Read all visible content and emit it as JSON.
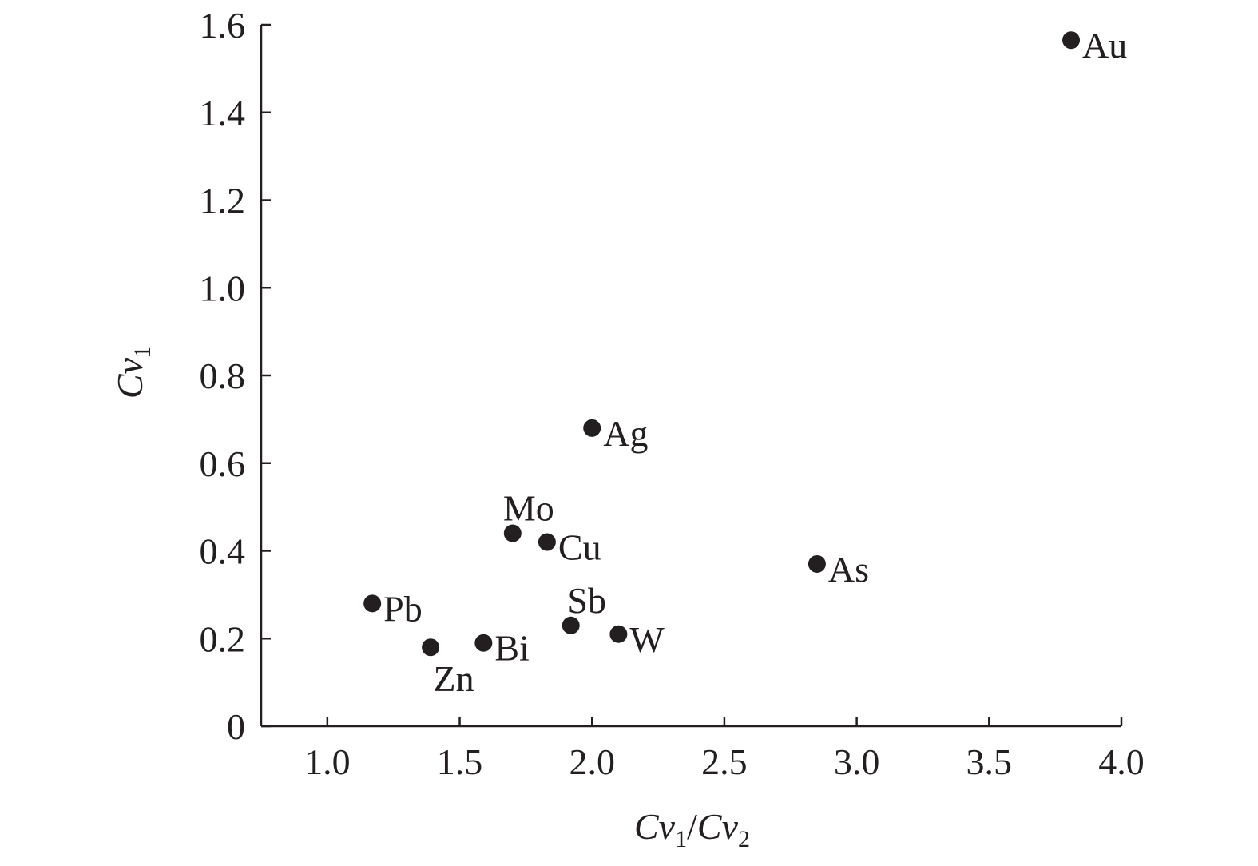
{
  "chart_data": {
    "type": "scatter",
    "title": "",
    "xlabel": {
      "parts": [
        {
          "text": "Cv",
          "style": "italic"
        },
        {
          "text": "1",
          "style": "sub"
        },
        {
          "text": "/",
          "style": "normal"
        },
        {
          "text": "Cv",
          "style": "italic"
        },
        {
          "text": "2",
          "style": "sub"
        }
      ]
    },
    "ylabel": {
      "parts": [
        {
          "text": "Cv",
          "style": "italic"
        },
        {
          "text": "1",
          "style": "sub"
        }
      ]
    },
    "xlim": [
      0.75,
      4.0
    ],
    "ylim": [
      0,
      1.6
    ],
    "xticks": [
      {
        "value": 1.0,
        "label": "1.0"
      },
      {
        "value": 1.5,
        "label": "1.5"
      },
      {
        "value": 2.0,
        "label": "2.0"
      },
      {
        "value": 2.5,
        "label": "2.5"
      },
      {
        "value": 3.0,
        "label": "3.0"
      },
      {
        "value": 3.5,
        "label": "3.5"
      },
      {
        "value": 4.0,
        "label": "4.0"
      }
    ],
    "yticks": [
      {
        "value": 0,
        "label": "0"
      },
      {
        "value": 0.2,
        "label": "0.2"
      },
      {
        "value": 0.4,
        "label": "0.4"
      },
      {
        "value": 0.6,
        "label": "0.6"
      },
      {
        "value": 0.8,
        "label": "0.8"
      },
      {
        "value": 1.0,
        "label": "1.0"
      },
      {
        "value": 1.2,
        "label": "1.2"
      },
      {
        "value": 1.4,
        "label": "1.4"
      },
      {
        "value": 1.6,
        "label": "1.6"
      }
    ],
    "grid": false,
    "marker_color": "#231f20",
    "points": [
      {
        "label": "Au",
        "x": 3.81,
        "y": 1.565,
        "label_pos": "right"
      },
      {
        "label": "Ag",
        "x": 2.0,
        "y": 0.68,
        "label_pos": "right"
      },
      {
        "label": "Mo",
        "x": 1.7,
        "y": 0.44,
        "label_pos": "above"
      },
      {
        "label": "Cu",
        "x": 1.83,
        "y": 0.42,
        "label_pos": "right"
      },
      {
        "label": "As",
        "x": 2.85,
        "y": 0.37,
        "label_pos": "right"
      },
      {
        "label": "Pb",
        "x": 1.17,
        "y": 0.28,
        "label_pos": "right"
      },
      {
        "label": "Sb",
        "x": 1.92,
        "y": 0.23,
        "label_pos": "above"
      },
      {
        "label": "W",
        "x": 2.1,
        "y": 0.21,
        "label_pos": "right"
      },
      {
        "label": "Bi",
        "x": 1.59,
        "y": 0.19,
        "label_pos": "right"
      },
      {
        "label": "Zn",
        "x": 1.39,
        "y": 0.18,
        "label_pos": "below"
      }
    ]
  }
}
